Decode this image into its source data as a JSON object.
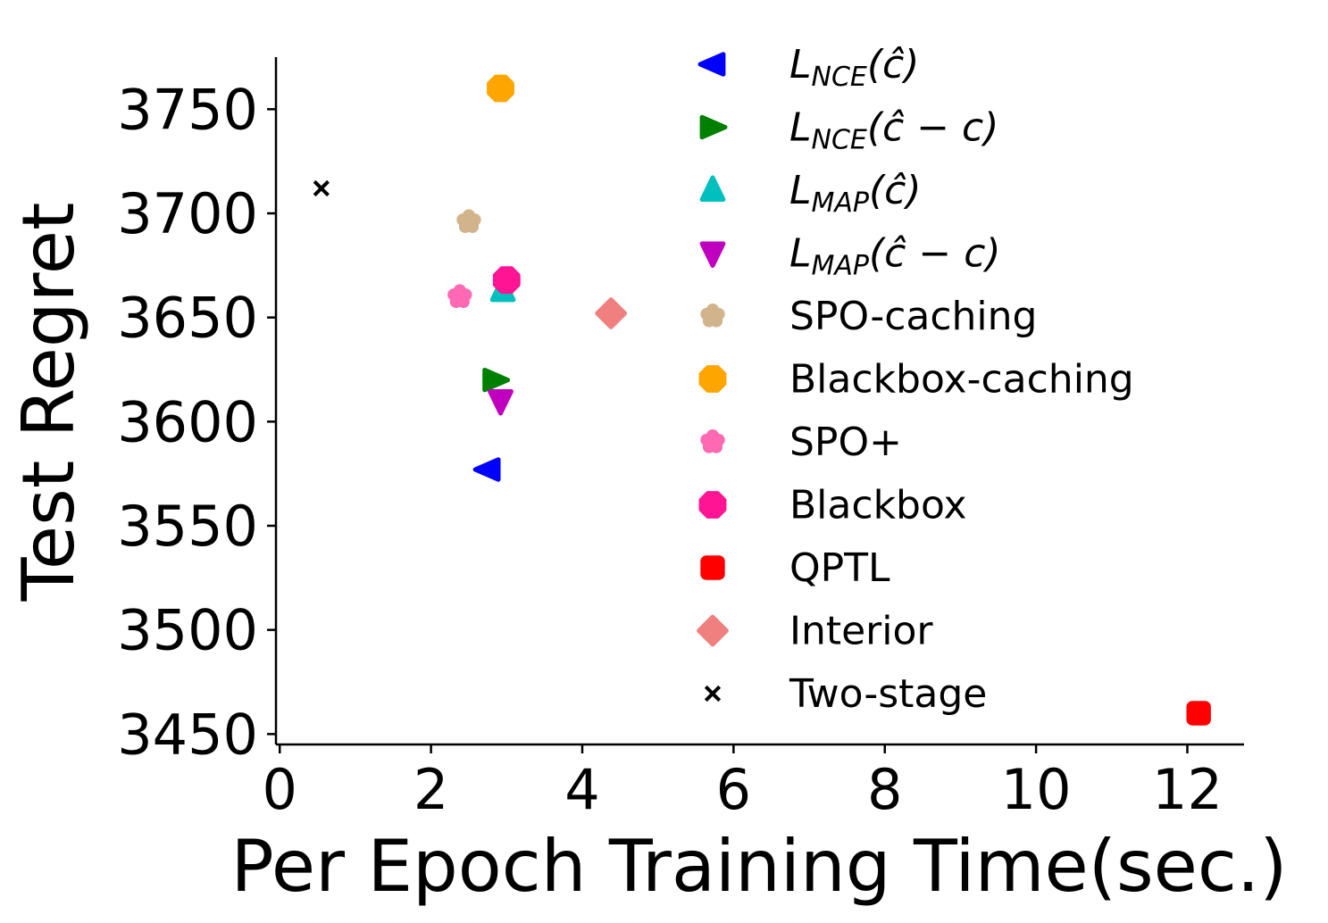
{
  "chart_data": {
    "type": "scatter",
    "title": "",
    "xlabel": "Per Epoch Training Time(sec.)",
    "ylabel": "Test Regret",
    "xlim": [
      -0.05,
      12.75
    ],
    "ylim": [
      3445,
      3775
    ],
    "xticks": [
      0,
      2,
      4,
      6,
      8,
      10,
      12
    ],
    "yticks": [
      3450,
      3500,
      3550,
      3600,
      3650,
      3700,
      3750
    ],
    "grid": false,
    "legend_position": "right",
    "series": [
      {
        "name": "L_NCE(ĉ)",
        "label_main": "L",
        "label_sub": "NCE",
        "label_rest": "(ĉ)",
        "marker": "triangle-left",
        "color": "#0000ff",
        "x": 2.75,
        "y": 3577
      },
      {
        "name": "L_NCE(ĉ − c)",
        "label_main": "L",
        "label_sub": "NCE",
        "label_rest": "(ĉ − c)",
        "marker": "triangle-right",
        "color": "#008000",
        "x": 2.85,
        "y": 3620
      },
      {
        "name": "L_MAP(ĉ)",
        "label_main": "L",
        "label_sub": "MAP",
        "label_rest": "(ĉ)",
        "marker": "triangle-up",
        "color": "#00bfbf",
        "x": 2.95,
        "y": 3663
      },
      {
        "name": "L_MAP(ĉ − c)",
        "label_main": "L",
        "label_sub": "MAP",
        "label_rest": "(ĉ − c)",
        "marker": "triangle-down",
        "color": "#bf00bf",
        "x": 2.92,
        "y": 3610
      },
      {
        "name": "SPO-caching",
        "marker": "flower",
        "color": "#d2b48c",
        "x": 2.5,
        "y": 3696
      },
      {
        "name": "Blackbox-caching",
        "marker": "octagon",
        "color": "#ffa500",
        "x": 2.92,
        "y": 3760
      },
      {
        "name": "SPO+",
        "marker": "flower",
        "color": "#ff69b4",
        "x": 2.38,
        "y": 3660
      },
      {
        "name": "Blackbox",
        "marker": "octagon",
        "color": "#ff1493",
        "x": 3.0,
        "y": 3668
      },
      {
        "name": "QPTL",
        "marker": "square",
        "color": "#ff0000",
        "x": 12.15,
        "y": 3460
      },
      {
        "name": "Interior",
        "marker": "diamond",
        "color": "#f08080",
        "x": 4.38,
        "y": 3652
      },
      {
        "name": "Two-stage",
        "marker": "x",
        "color": "#000000",
        "x": 0.55,
        "y": 3712
      }
    ]
  }
}
